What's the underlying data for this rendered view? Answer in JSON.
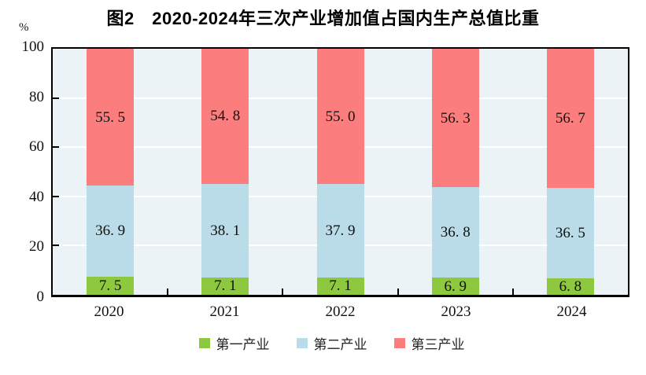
{
  "chart_data": {
    "type": "bar",
    "stacked": true,
    "title": "图2　2020-2024年三次产业增加值占国内生产总值比重",
    "ylabel": "%",
    "xlabel": "",
    "categories": [
      "2020",
      "2021",
      "2022",
      "2023",
      "2024"
    ],
    "series": [
      {
        "name": "第一产业",
        "color": "#8dc83e",
        "values": [
          7.5,
          7.1,
          7.1,
          6.9,
          6.8
        ]
      },
      {
        "name": "第二产业",
        "color": "#b9dce8",
        "values": [
          36.9,
          38.1,
          37.9,
          36.8,
          36.5
        ]
      },
      {
        "name": "第三产业",
        "color": "#fc7d7d",
        "values": [
          55.5,
          54.8,
          55.0,
          56.3,
          56.7
        ]
      }
    ],
    "ylim": [
      0,
      100
    ],
    "yticks": [
      0,
      20,
      40,
      60,
      80,
      100
    ],
    "grid": true,
    "gridline_color": "#ffffff",
    "plot_background": "#ecf3f7",
    "axis_color": "#000000",
    "legend_position": "bottom"
  }
}
